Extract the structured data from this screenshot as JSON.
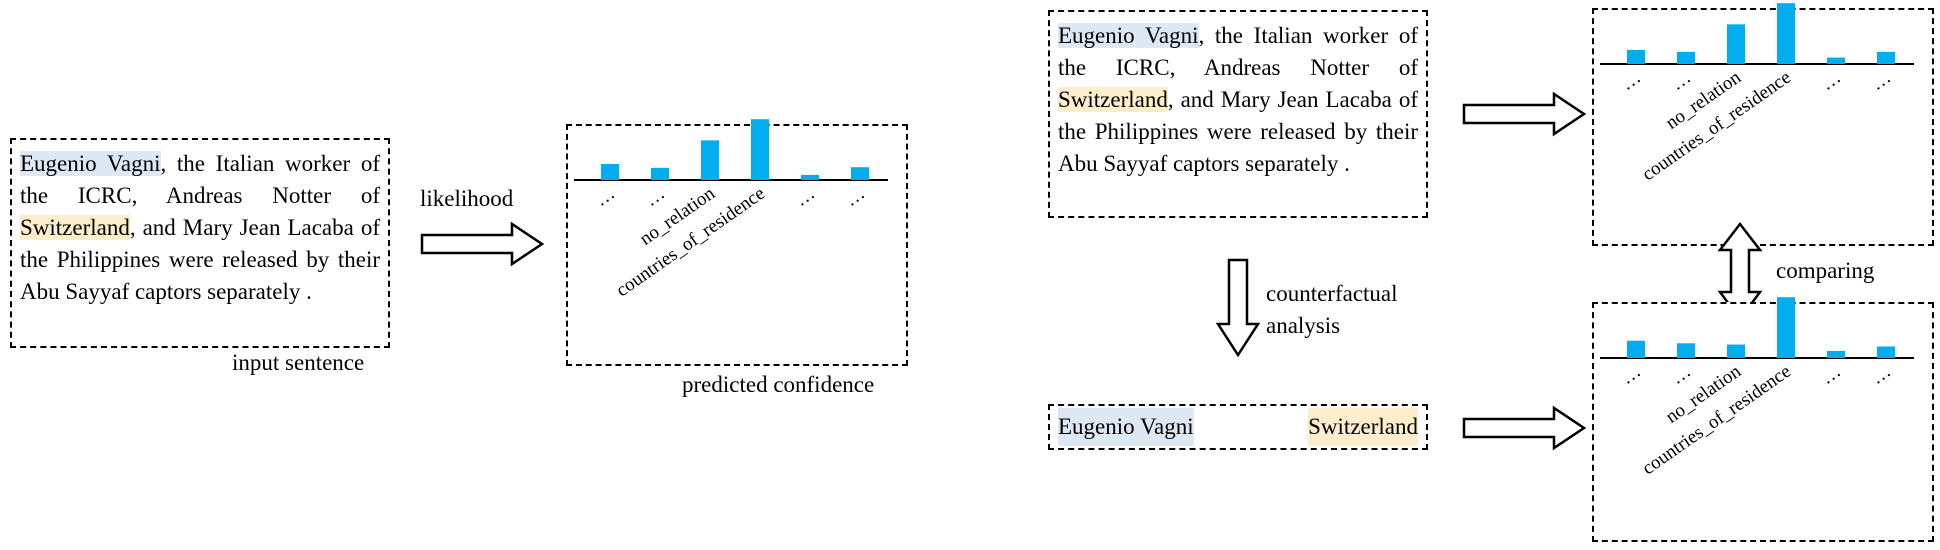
{
  "sentence": {
    "head_entity": "Eugenio Vagni",
    "text_1": ", the Italian worker of the ICRC, Andreas Notter of ",
    "tail_entity": "Switzerland",
    "text_2": ", and Mary Jean Lacaba of the Philippines were released by their Abu Sayyaf captors separately ."
  },
  "labels": {
    "input_sentence": "input sentence",
    "likelihood": "likelihood",
    "predicted_confidence": "predicted confidence",
    "counterfactual_line1": "counterfactual",
    "counterfactual_line2": "analysis",
    "comparing": "comparing"
  },
  "colors": {
    "bar": "#00aeef",
    "head_highlight": "#dde8f4",
    "tail_highlight": "#fdeecb"
  },
  "chart_data": [
    {
      "type": "bar",
      "categories": [
        "…",
        "…",
        "no_relation",
        "countries_of_residence",
        "…",
        "…"
      ],
      "values": [
        0.25,
        0.19,
        0.62,
        0.95,
        0.08,
        0.2
      ],
      "ylim": [
        0,
        1
      ],
      "grid": false
    },
    {
      "type": "bar",
      "categories": [
        "…",
        "…",
        "no_relation",
        "countries_of_residence",
        "…",
        "…"
      ],
      "values": [
        0.22,
        0.19,
        0.62,
        0.95,
        0.1,
        0.19
      ],
      "ylim": [
        0,
        1
      ],
      "grid": false
    },
    {
      "type": "bar",
      "categories": [
        "…",
        "…",
        "no_relation",
        "countries_of_residence",
        "…",
        "…"
      ],
      "values": [
        0.27,
        0.23,
        0.21,
        0.95,
        0.11,
        0.18
      ],
      "ylim": [
        0,
        1
      ],
      "grid": false
    }
  ]
}
